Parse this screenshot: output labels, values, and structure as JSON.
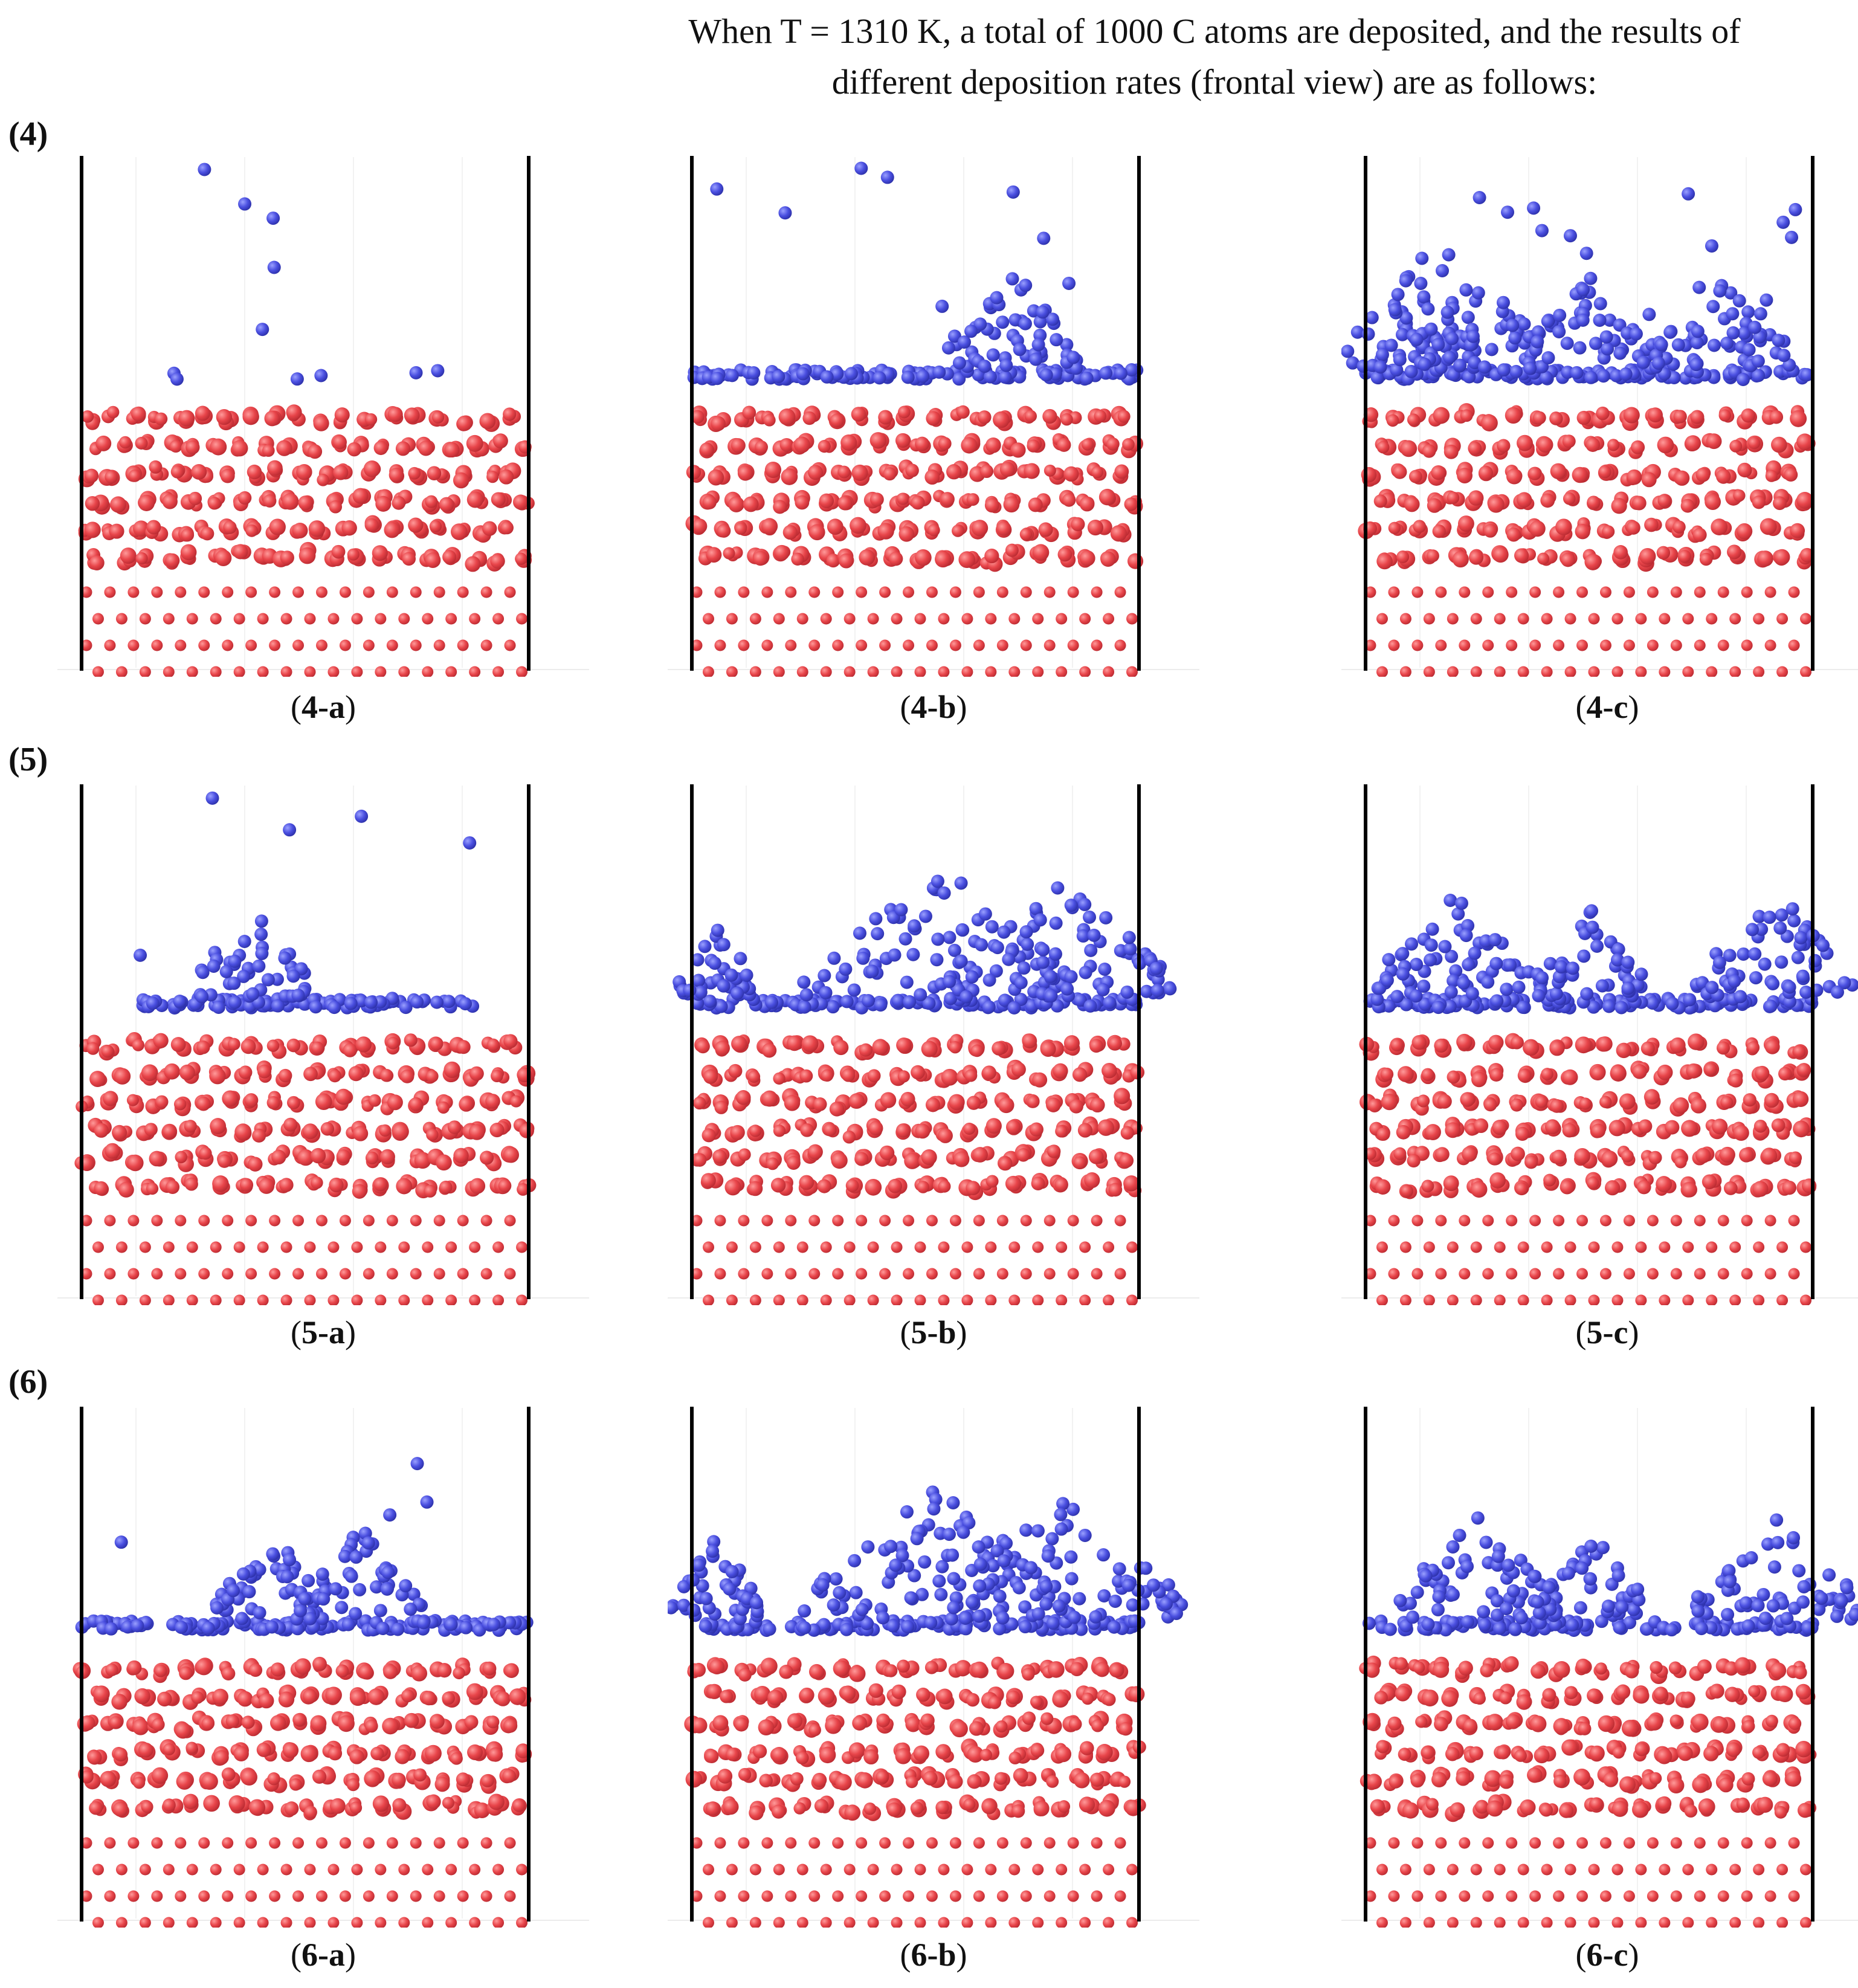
{
  "title_line1": "When T = 1310 K, a total of 1000 C atoms are deposited, and the results of",
  "title_line2": "different deposition rates (frontal view) are as follows:",
  "colors": {
    "substrate_atom": "#e8454a",
    "substrate_atom_shade": "#b92a31",
    "carbon_atom": "#4a4fe0",
    "carbon_atom_shade": "#2c30a8",
    "boundary_line": "#000000"
  },
  "rows": [
    {
      "label": "(4)",
      "panels": [
        {
          "id": "4-a",
          "caption": "4-a",
          "film": "thin",
          "clusters": [],
          "scatter": "low"
        },
        {
          "id": "4-b",
          "caption": "4-b",
          "film": "full",
          "clusters": [
            [
              0.72,
              0.15
            ]
          ],
          "scatter": "medium"
        },
        {
          "id": "4-c",
          "caption": "4-c",
          "film": "full",
          "clusters": [
            [
              0.1,
              0.15
            ],
            [
              0.25,
              0.15
            ],
            [
              0.5,
              0.15
            ],
            [
              0.8,
              0.15
            ]
          ],
          "scatter": "high"
        }
      ]
    },
    {
      "label": "(5)",
      "panels": [
        {
          "id": "5-a",
          "caption": "5-a",
          "film": "partial",
          "clusters": [
            [
              0.38,
              0.12
            ]
          ],
          "scatter": "low"
        },
        {
          "id": "5-b",
          "caption": "5-b",
          "film": "full",
          "clusters": [
            [
              0.55,
              0.3
            ],
            [
              0.82,
              0.25
            ],
            [
              0.05,
              0.08
            ]
          ],
          "scatter": "none"
        },
        {
          "id": "5-c",
          "caption": "5-c",
          "film": "full",
          "clusters": [
            [
              0.2,
              0.18
            ],
            [
              0.5,
              0.12
            ],
            [
              0.92,
              0.18
            ]
          ],
          "scatter": "none"
        }
      ]
    },
    {
      "label": "(6)",
      "panels": [
        {
          "id": "6-a",
          "caption": "6-a",
          "film": "full",
          "clusters": [
            [
              0.42,
              0.12
            ],
            [
              0.62,
              0.14
            ]
          ],
          "scatter": "low"
        },
        {
          "id": "6-b",
          "caption": "6-b",
          "film": "full",
          "clusters": [
            [
              0.55,
              0.3
            ],
            [
              0.82,
              0.28
            ],
            [
              0.05,
              0.1
            ]
          ],
          "scatter": "none"
        },
        {
          "id": "6-c",
          "caption": "6-c",
          "film": "full",
          "clusters": [
            [
              0.25,
              0.18
            ],
            [
              0.5,
              0.12
            ],
            [
              0.92,
              0.18
            ]
          ],
          "scatter": "none"
        }
      ]
    }
  ]
}
